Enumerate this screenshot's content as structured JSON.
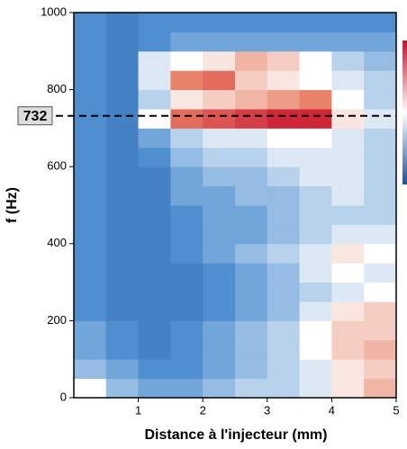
{
  "chart_data": {
    "type": "heatmap",
    "xlabel": "Distance à l'injecteur (mm)",
    "ylabel": "f (Hz)",
    "xbins": [
      0,
      0.5,
      1,
      1.5,
      2,
      2.5,
      3,
      3.5,
      4,
      4.5,
      5
    ],
    "ybins": [
      0,
      50,
      100,
      150,
      200,
      250,
      300,
      350,
      400,
      450,
      500,
      550,
      600,
      650,
      700,
      750,
      800,
      850,
      900,
      950,
      1000
    ],
    "z": [
      [
        0.5,
        0.35,
        0.3,
        0.3,
        0.35,
        0.4,
        0.4,
        0.45,
        0.55,
        0.65
      ],
      [
        0.35,
        0.3,
        0.25,
        0.25,
        0.3,
        0.35,
        0.4,
        0.45,
        0.55,
        0.6
      ],
      [
        0.3,
        0.25,
        0.2,
        0.25,
        0.3,
        0.35,
        0.4,
        0.5,
        0.6,
        0.65
      ],
      [
        0.3,
        0.25,
        0.2,
        0.25,
        0.3,
        0.35,
        0.4,
        0.5,
        0.6,
        0.6
      ],
      [
        0.25,
        0.2,
        0.2,
        0.2,
        0.25,
        0.3,
        0.35,
        0.45,
        0.55,
        0.6
      ],
      [
        0.25,
        0.2,
        0.2,
        0.2,
        0.25,
        0.3,
        0.35,
        0.4,
        0.45,
        0.5
      ],
      [
        0.25,
        0.2,
        0.2,
        0.2,
        0.25,
        0.3,
        0.35,
        0.45,
        0.5,
        0.45
      ],
      [
        0.25,
        0.2,
        0.2,
        0.25,
        0.3,
        0.35,
        0.4,
        0.45,
        0.55,
        0.5
      ],
      [
        0.25,
        0.2,
        0.2,
        0.25,
        0.3,
        0.3,
        0.35,
        0.4,
        0.45,
        0.45
      ],
      [
        0.25,
        0.2,
        0.2,
        0.25,
        0.3,
        0.3,
        0.35,
        0.4,
        0.4,
        0.4
      ],
      [
        0.25,
        0.2,
        0.2,
        0.3,
        0.3,
        0.35,
        0.35,
        0.4,
        0.45,
        0.4
      ],
      [
        0.25,
        0.2,
        0.2,
        0.3,
        0.35,
        0.35,
        0.4,
        0.45,
        0.45,
        0.4
      ],
      [
        0.25,
        0.2,
        0.25,
        0.35,
        0.4,
        0.4,
        0.45,
        0.45,
        0.45,
        0.4
      ],
      [
        0.25,
        0.2,
        0.3,
        0.4,
        0.45,
        0.45,
        0.5,
        0.5,
        0.45,
        0.4
      ],
      [
        0.25,
        0.2,
        0.5,
        0.8,
        0.85,
        0.9,
        0.95,
        0.95,
        0.55,
        0.45
      ],
      [
        0.25,
        0.2,
        0.4,
        0.55,
        0.6,
        0.65,
        0.7,
        0.75,
        0.5,
        0.4
      ],
      [
        0.25,
        0.2,
        0.45,
        0.75,
        0.8,
        0.6,
        0.55,
        0.5,
        0.45,
        0.4
      ],
      [
        0.25,
        0.2,
        0.45,
        0.5,
        0.55,
        0.65,
        0.6,
        0.5,
        0.4,
        0.35
      ],
      [
        0.25,
        0.2,
        0.25,
        0.3,
        0.3,
        0.3,
        0.3,
        0.3,
        0.3,
        0.3
      ],
      [
        0.25,
        0.2,
        0.25,
        0.25,
        0.25,
        0.25,
        0.25,
        0.25,
        0.25,
        0.25
      ]
    ],
    "zlim": [
      0,
      1
    ],
    "colormap": [
      "#1f4f9c",
      "#4f8fcf",
      "#ffffff",
      "#e8836a",
      "#c8102e"
    ],
    "xlim": [
      0,
      5
    ],
    "xticks": [
      1,
      2,
      3,
      4,
      5
    ],
    "ylim": [
      0,
      1000
    ],
    "yticks": [
      0,
      200,
      400,
      600,
      800,
      1000
    ],
    "hline": 732
  }
}
